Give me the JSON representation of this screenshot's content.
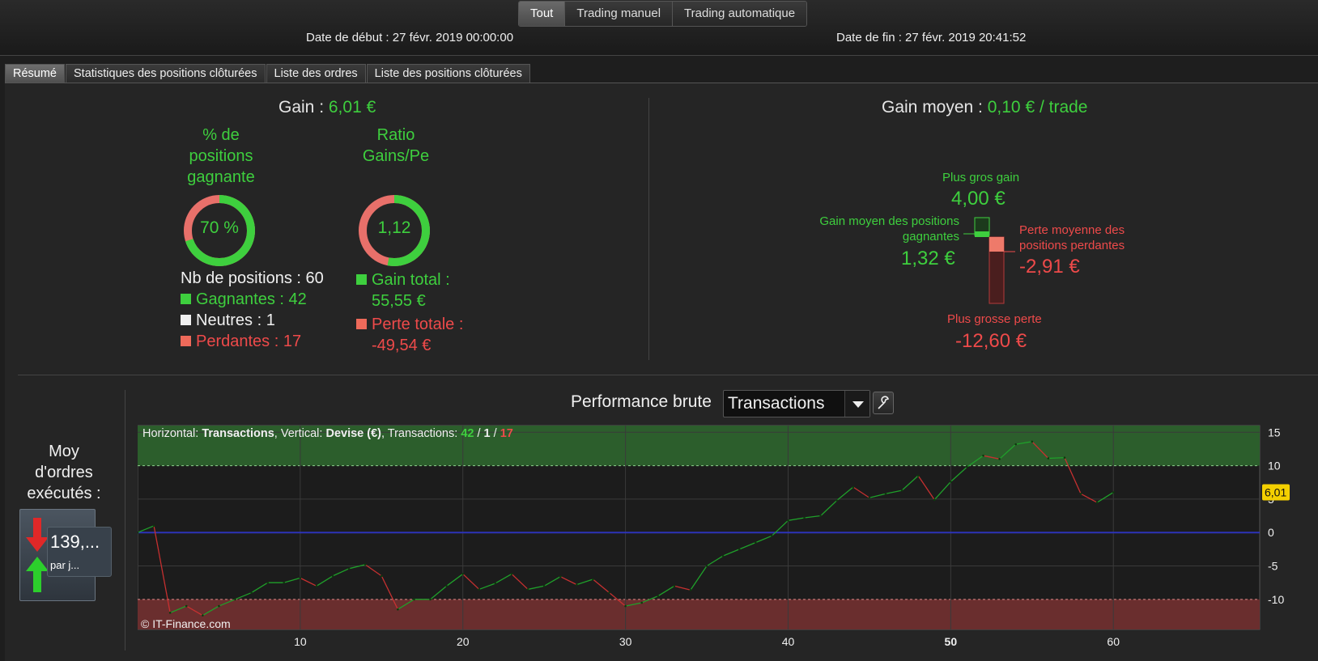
{
  "header": {
    "modes": [
      "Tout",
      "Trading manuel",
      "Trading automatique"
    ],
    "start_date": "Date de début : 27 févr. 2019 00:00:00",
    "end_date": "Date de fin : 27 févr. 2019 20:41:52"
  },
  "tabs": [
    "Résumé",
    "Statistiques des positions clôturées",
    "Liste des ordres",
    "Liste des positions clôturées"
  ],
  "summary": {
    "gain_label": "Gain : ",
    "gain_value": "6,01 €",
    "win_pct_title_1": "% de",
    "win_pct_title_2": "positions",
    "win_pct_title_3": "gagnante",
    "win_pct_value": "70 %",
    "win_pct": 0.7,
    "ratio_title_1": "Ratio",
    "ratio_title_2": "Gains/Pe",
    "ratio_value": "1,12",
    "ratio_green_fraction": 0.53,
    "nb_positions": "Nb de positions : 60",
    "gagnantes": "Gagnantes : 42",
    "neutres": "Neutres : 1",
    "perdantes": "Perdantes : 17",
    "gain_total_1": "Gain total :",
    "gain_total_2": "55,55 €",
    "perte_totale_1": "Perte totale :",
    "perte_totale_2": "-49,54 €"
  },
  "avg": {
    "title_label": "Gain moyen : ",
    "title_value": "0,10 € / trade",
    "biggest_gain_label": "Plus gros gain",
    "biggest_gain_value": "4,00 €",
    "avg_win_label_1": "Gain moyen des positions",
    "avg_win_label_2": "gagnantes",
    "avg_win_value": "1,32 €",
    "avg_loss_label_1": "Perte moyenne des",
    "avg_loss_label_2": "positions perdantes",
    "avg_loss_value": "-2,91 €",
    "biggest_loss_label": "Plus grosse perte",
    "biggest_loss_value": "-12,60 €"
  },
  "orders": {
    "title_1": "Moy",
    "title_2": "d'ordres",
    "title_3": "exécutés :",
    "value": "139,...",
    "unit": "par j..."
  },
  "performance": {
    "title": "Performance brute",
    "dropdown_value": "Transactions",
    "info_h": "Horizontal: ",
    "info_h_val": "Transactions",
    "info_v": ", Vertical: ",
    "info_v_val": "Devise (€)",
    "info_t": ", Transactions: ",
    "info_win": "42",
    "info_sep1": " / ",
    "info_neutral": "1",
    "info_sep2": " / ",
    "info_loss": "17",
    "copyright": "© IT-Finance.com",
    "last_value_label": "6,01"
  },
  "chart_data": {
    "type": "line",
    "xlim": [
      0,
      69
    ],
    "ylim": [
      -14.5,
      16
    ],
    "x_ticks": [
      "10",
      "20",
      "30",
      "40",
      "50",
      "60"
    ],
    "y_ticks": [
      "15",
      "10",
      "5",
      "0",
      "-5",
      "-10"
    ],
    "y_tick_values": [
      15,
      10,
      5,
      0,
      -5,
      -10
    ],
    "x_tick_values": [
      10,
      20,
      30,
      40,
      50,
      60
    ],
    "upper_band": 10,
    "lower_band": -10,
    "zero_line": 0,
    "last_value": 6.01,
    "x": [
      0,
      1,
      2,
      3,
      4,
      5,
      6,
      7,
      8,
      9,
      10,
      11,
      12,
      13,
      14,
      15,
      16,
      17,
      18,
      19,
      20,
      21,
      22,
      23,
      24,
      25,
      26,
      27,
      28,
      29,
      30,
      31,
      32,
      33,
      34,
      35,
      36,
      37,
      38,
      39,
      40,
      41,
      42,
      43,
      44,
      45,
      46,
      47,
      48,
      49,
      50,
      51,
      52,
      53,
      54,
      55,
      56,
      57,
      58,
      59,
      60
    ],
    "values": [
      0,
      1,
      -12,
      -11,
      -12.4,
      -11,
      -10,
      -9,
      -7.5,
      -7.5,
      -6.8,
      -8,
      -6.5,
      -5.4,
      -4.8,
      -6.5,
      -11.5,
      -10,
      -10,
      -8,
      -6.2,
      -8.5,
      -7.6,
      -6.2,
      -8.5,
      -8,
      -6.6,
      -7.8,
      -7,
      -9,
      -11,
      -10.5,
      -9.5,
      -8,
      -8.6,
      -5,
      -3.5,
      -2.5,
      -1.5,
      -0.5,
      1.8,
      2.2,
      2.5,
      4.8,
      6.8,
      5.2,
      5.8,
      6.3,
      8.5,
      4.9,
      7.6,
      9.8,
      11.5,
      11,
      13.2,
      13.6,
      11.1,
      11.2,
      5.8,
      4.5,
      6.01
    ]
  },
  "colors": {
    "gain": "#3ecf3e",
    "loss": "#ee4a4a",
    "neutral": "#f0f0f0",
    "line_up": "#1fa02a",
    "line_down": "#c63030",
    "zero_line": "#2c33b8",
    "badge": "#f4d000"
  }
}
